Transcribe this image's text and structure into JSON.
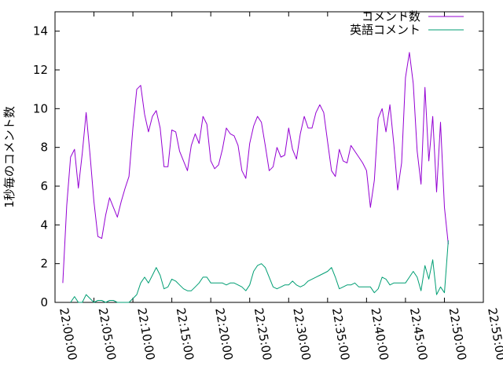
{
  "chart_data": {
    "type": "line",
    "title": "",
    "xlabel": "",
    "ylabel": "1秒毎のコメント数",
    "x_type": "time",
    "xlim": [
      "22:00:00",
      "22:55:00"
    ],
    "ylim": [
      0,
      15
    ],
    "x_ticks": [
      "22:00:00",
      "22:05:00",
      "22:10:00",
      "22:15:00",
      "22:20:00",
      "22:25:00",
      "22:30:00",
      "22:35:00",
      "22:40:00",
      "22:45:00",
      "22:50:00",
      "22:55:00"
    ],
    "y_ticks": [
      0,
      2,
      4,
      6,
      8,
      10,
      12,
      14
    ],
    "grid": false,
    "legend_position": "top-right",
    "series": [
      {
        "name": "コメント数",
        "color": "#9400d3",
        "points": [
          [
            "22:01:00",
            1.0
          ],
          [
            "22:01:30",
            5.0
          ],
          [
            "22:02:00",
            7.5
          ],
          [
            "22:02:30",
            7.9
          ],
          [
            "22:03:00",
            5.9
          ],
          [
            "22:03:30",
            7.7
          ],
          [
            "22:04:00",
            9.8
          ],
          [
            "22:04:30",
            7.6
          ],
          [
            "22:05:00",
            5.2
          ],
          [
            "22:05:30",
            3.4
          ],
          [
            "22:06:00",
            3.3
          ],
          [
            "22:06:30",
            4.5
          ],
          [
            "22:07:00",
            5.4
          ],
          [
            "22:07:30",
            4.9
          ],
          [
            "22:08:00",
            4.4
          ],
          [
            "22:08:30",
            5.2
          ],
          [
            "22:09:00",
            5.9
          ],
          [
            "22:09:30",
            6.5
          ],
          [
            "22:10:00",
            9.0
          ],
          [
            "22:10:30",
            11.0
          ],
          [
            "22:11:00",
            11.2
          ],
          [
            "22:11:30",
            9.7
          ],
          [
            "22:12:00",
            8.8
          ],
          [
            "22:12:30",
            9.6
          ],
          [
            "22:13:00",
            9.9
          ],
          [
            "22:13:30",
            9.0
          ],
          [
            "22:14:00",
            7.0
          ],
          [
            "22:14:30",
            7.0
          ],
          [
            "22:15:00",
            8.9
          ],
          [
            "22:15:30",
            8.8
          ],
          [
            "22:16:00",
            7.8
          ],
          [
            "22:16:30",
            7.3
          ],
          [
            "22:17:00",
            6.8
          ],
          [
            "22:17:30",
            8.1
          ],
          [
            "22:18:00",
            8.7
          ],
          [
            "22:18:30",
            8.2
          ],
          [
            "22:19:00",
            9.6
          ],
          [
            "22:19:30",
            9.2
          ],
          [
            "22:20:00",
            7.3
          ],
          [
            "22:20:30",
            6.9
          ],
          [
            "22:21:00",
            7.1
          ],
          [
            "22:21:30",
            7.9
          ],
          [
            "22:22:00",
            9.0
          ],
          [
            "22:22:30",
            8.7
          ],
          [
            "22:23:00",
            8.6
          ],
          [
            "22:23:30",
            8.1
          ],
          [
            "22:24:00",
            6.8
          ],
          [
            "22:24:30",
            6.4
          ],
          [
            "22:25:00",
            8.2
          ],
          [
            "22:25:30",
            9.1
          ],
          [
            "22:26:00",
            9.6
          ],
          [
            "22:26:30",
            9.3
          ],
          [
            "22:27:00",
            8.1
          ],
          [
            "22:27:30",
            6.8
          ],
          [
            "22:28:00",
            7.0
          ],
          [
            "22:28:30",
            8.0
          ],
          [
            "22:29:00",
            7.5
          ],
          [
            "22:29:30",
            7.6
          ],
          [
            "22:30:00",
            9.0
          ],
          [
            "22:30:30",
            7.9
          ],
          [
            "22:31:00",
            7.4
          ],
          [
            "22:31:30",
            8.7
          ],
          [
            "22:32:00",
            9.6
          ],
          [
            "22:32:30",
            9.0
          ],
          [
            "22:33:00",
            9.0
          ],
          [
            "22:33:30",
            9.8
          ],
          [
            "22:34:00",
            10.2
          ],
          [
            "22:34:30",
            9.8
          ],
          [
            "22:35:00",
            8.3
          ],
          [
            "22:35:30",
            6.8
          ],
          [
            "22:36:00",
            6.5
          ],
          [
            "22:36:30",
            7.9
          ],
          [
            "22:37:00",
            7.3
          ],
          [
            "22:37:30",
            7.2
          ],
          [
            "22:38:00",
            8.1
          ],
          [
            "22:38:30",
            7.8
          ],
          [
            "22:39:00",
            7.5
          ],
          [
            "22:39:30",
            7.2
          ],
          [
            "22:40:00",
            6.8
          ],
          [
            "22:40:30",
            4.9
          ],
          [
            "22:41:00",
            6.3
          ],
          [
            "22:41:30",
            9.5
          ],
          [
            "22:42:00",
            10.0
          ],
          [
            "22:42:30",
            8.8
          ],
          [
            "22:43:00",
            10.2
          ],
          [
            "22:43:30",
            8.2
          ],
          [
            "22:44:00",
            5.8
          ],
          [
            "22:44:30",
            7.2
          ],
          [
            "22:45:00",
            11.6
          ],
          [
            "22:45:30",
            12.9
          ],
          [
            "22:46:00",
            11.3
          ],
          [
            "22:46:30",
            7.8
          ],
          [
            "22:47:00",
            6.1
          ],
          [
            "22:47:30",
            11.1
          ],
          [
            "22:48:00",
            7.3
          ],
          [
            "22:48:30",
            9.6
          ],
          [
            "22:49:00",
            5.7
          ],
          [
            "22:49:30",
            9.3
          ],
          [
            "22:50:00",
            4.9
          ],
          [
            "22:50:30",
            3.0
          ]
        ]
      },
      {
        "name": "英語コメント",
        "color": "#009e73",
        "points": [
          [
            "22:02:00",
            0.0
          ],
          [
            "22:02:30",
            0.3
          ],
          [
            "22:03:00",
            0.0
          ],
          [
            "22:03:30",
            0.0
          ],
          [
            "22:04:00",
            0.4
          ],
          [
            "22:04:30",
            0.2
          ],
          [
            "22:05:00",
            0.0
          ],
          [
            "22:05:30",
            0.1
          ],
          [
            "22:06:00",
            0.1
          ],
          [
            "22:06:30",
            0.0
          ],
          [
            "22:07:00",
            0.1
          ],
          [
            "22:07:30",
            0.1
          ],
          [
            "22:08:00",
            0.0
          ],
          [
            "22:08:30",
            0.0
          ],
          [
            "22:09:00",
            0.0
          ],
          [
            "22:09:30",
            0.0
          ],
          [
            "22:10:00",
            0.2
          ],
          [
            "22:10:30",
            0.4
          ],
          [
            "22:11:00",
            1.0
          ],
          [
            "22:11:30",
            1.3
          ],
          [
            "22:12:00",
            1.0
          ],
          [
            "22:12:30",
            1.4
          ],
          [
            "22:13:00",
            1.8
          ],
          [
            "22:13:30",
            1.4
          ],
          [
            "22:14:00",
            0.7
          ],
          [
            "22:14:30",
            0.8
          ],
          [
            "22:15:00",
            1.2
          ],
          [
            "22:15:30",
            1.1
          ],
          [
            "22:16:00",
            0.9
          ],
          [
            "22:16:30",
            0.7
          ],
          [
            "22:17:00",
            0.6
          ],
          [
            "22:17:30",
            0.6
          ],
          [
            "22:18:00",
            0.8
          ],
          [
            "22:18:30",
            1.0
          ],
          [
            "22:19:00",
            1.3
          ],
          [
            "22:19:30",
            1.3
          ],
          [
            "22:20:00",
            1.0
          ],
          [
            "22:20:30",
            1.0
          ],
          [
            "22:21:00",
            1.0
          ],
          [
            "22:21:30",
            1.0
          ],
          [
            "22:22:00",
            0.9
          ],
          [
            "22:22:30",
            1.0
          ],
          [
            "22:23:00",
            1.0
          ],
          [
            "22:23:30",
            0.9
          ],
          [
            "22:24:00",
            0.8
          ],
          [
            "22:24:30",
            0.6
          ],
          [
            "22:25:00",
            0.9
          ],
          [
            "22:25:30",
            1.6
          ],
          [
            "22:26:00",
            1.9
          ],
          [
            "22:26:30",
            2.0
          ],
          [
            "22:27:00",
            1.8
          ],
          [
            "22:27:30",
            1.3
          ],
          [
            "22:28:00",
            0.8
          ],
          [
            "22:28:30",
            0.7
          ],
          [
            "22:29:00",
            0.8
          ],
          [
            "22:29:30",
            0.9
          ],
          [
            "22:30:00",
            0.9
          ],
          [
            "22:30:30",
            1.1
          ],
          [
            "22:31:00",
            0.9
          ],
          [
            "22:31:30",
            0.8
          ],
          [
            "22:32:00",
            0.9
          ],
          [
            "22:32:30",
            1.1
          ],
          [
            "22:33:00",
            1.2
          ],
          [
            "22:33:30",
            1.3
          ],
          [
            "22:34:00",
            1.4
          ],
          [
            "22:34:30",
            1.5
          ],
          [
            "22:35:00",
            1.6
          ],
          [
            "22:35:30",
            1.8
          ],
          [
            "22:36:00",
            1.3
          ],
          [
            "22:36:30",
            0.7
          ],
          [
            "22:37:00",
            0.8
          ],
          [
            "22:37:30",
            0.9
          ],
          [
            "22:38:00",
            0.9
          ],
          [
            "22:38:30",
            1.0
          ],
          [
            "22:39:00",
            0.8
          ],
          [
            "22:39:30",
            0.8
          ],
          [
            "22:40:00",
            0.8
          ],
          [
            "22:40:30",
            0.8
          ],
          [
            "22:41:00",
            0.5
          ],
          [
            "22:41:30",
            0.7
          ],
          [
            "22:42:00",
            1.3
          ],
          [
            "22:42:30",
            1.2
          ],
          [
            "22:43:00",
            0.9
          ],
          [
            "22:43:30",
            1.0
          ],
          [
            "22:44:00",
            1.0
          ],
          [
            "22:44:30",
            1.0
          ],
          [
            "22:45:00",
            1.0
          ],
          [
            "22:45:30",
            1.3
          ],
          [
            "22:46:00",
            1.6
          ],
          [
            "22:46:30",
            1.3
          ],
          [
            "22:47:00",
            0.6
          ],
          [
            "22:47:30",
            1.9
          ],
          [
            "22:48:00",
            1.2
          ],
          [
            "22:48:30",
            2.2
          ],
          [
            "22:49:00",
            0.4
          ],
          [
            "22:49:30",
            0.8
          ],
          [
            "22:50:00",
            0.5
          ],
          [
            "22:50:30",
            3.2
          ]
        ]
      }
    ]
  }
}
